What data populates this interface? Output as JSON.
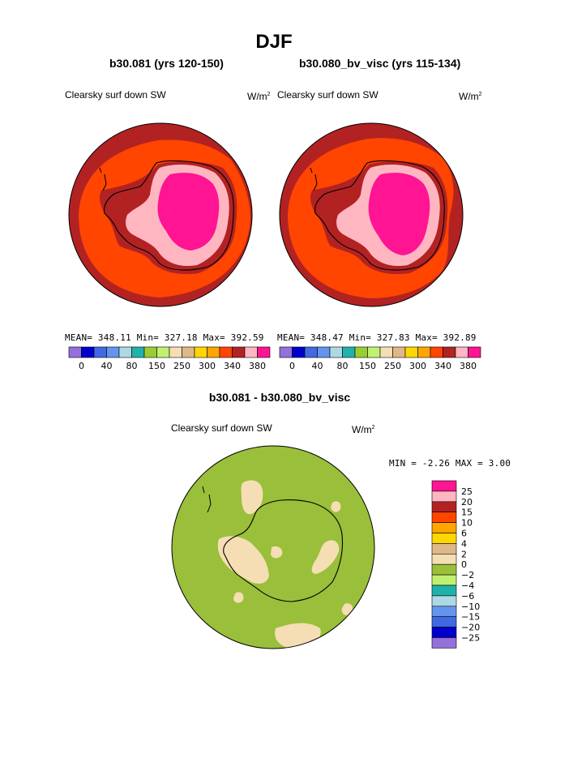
{
  "figure": {
    "season": "DJF",
    "difference_title": "b30.081 - b30.080_bv_visc",
    "difference_variable": "Clearsky surf down SW",
    "difference_units": "W/m",
    "difference_units_exp": "2",
    "difference_stats": "MIN =   -2.26 MAX =    3.00"
  },
  "colors": {
    "abs_scale": [
      "#9370db",
      "#0000cd",
      "#4169e1",
      "#6495ed",
      "#add8e6",
      "#20b2aa",
      "#9acd32",
      "#c0f070",
      "#f5deb3",
      "#deb887",
      "#ffd700",
      "#ffa500",
      "#ff4500",
      "#b22222",
      "#ffb6c1",
      "#ff1493"
    ],
    "diff_scale": [
      "#9370db",
      "#0000cd",
      "#4169e1",
      "#6495ed",
      "#add8e6",
      "#20b2aa",
      "#c0f070",
      "#9abf3a",
      "#f5deb3",
      "#deb887",
      "#ffd700",
      "#ffa500",
      "#ff4500",
      "#b22222",
      "#ffb6c1",
      "#ff1493"
    ]
  },
  "chart_data": [
    {
      "type": "heatmap",
      "projection": "south-polar-stereographic",
      "title": "b30.081 (yrs 120-150)",
      "variable": "Clearsky surf down SW",
      "units": "W/m",
      "units_exp": "2",
      "stats": "MEAN= 348.11   Min= 327.18   Max= 392.59",
      "mean": 348.11,
      "min": 327.18,
      "max": 392.59,
      "colorbar_levels": [
        0,
        40,
        80,
        150,
        250,
        300,
        340,
        380
      ],
      "colorbar_ticks": [
        "0",
        "40",
        "80",
        "150",
        "250",
        "300",
        "340",
        "380"
      ]
    },
    {
      "type": "heatmap",
      "projection": "south-polar-stereographic",
      "title": "b30.080_bv_visc (yrs 115-134)",
      "variable": "Clearsky surf down SW",
      "units": "W/m",
      "units_exp": "2",
      "stats": "MEAN= 348.47   Min= 327.83   Max= 392.89",
      "mean": 348.47,
      "min": 327.83,
      "max": 392.89,
      "colorbar_levels": [
        0,
        40,
        80,
        150,
        250,
        300,
        340,
        380
      ],
      "colorbar_ticks": [
        "0",
        "40",
        "80",
        "150",
        "250",
        "300",
        "340",
        "380"
      ]
    },
    {
      "type": "heatmap",
      "projection": "south-polar-stereographic",
      "title": "b30.081 - b30.080_bv_visc",
      "variable": "Clearsky surf down SW",
      "units": "W/m",
      "units_exp": "2",
      "min": -2.26,
      "max": 3.0,
      "colorbar_levels": [
        -25,
        -20,
        -15,
        -10,
        -6,
        -4,
        -2,
        0,
        2,
        4,
        6,
        10,
        15,
        20,
        25
      ],
      "colorbar_ticks": [
        "25",
        "20",
        "15",
        "10",
        "6",
        "4",
        "2",
        "0",
        "−2",
        "−4",
        "−6",
        "−10",
        "−15",
        "−20",
        "−25"
      ]
    }
  ]
}
